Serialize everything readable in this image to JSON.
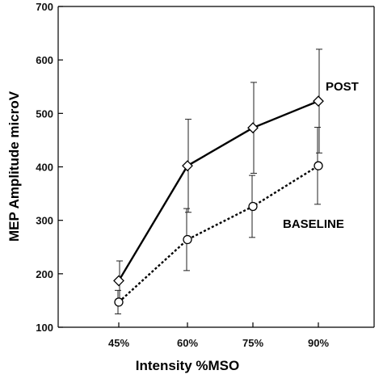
{
  "chart_data": {
    "type": "line",
    "categories": [
      "45%",
      "60%",
      "75%",
      "90%"
    ],
    "xlabel": "Intensity %MSO",
    "ylabel": "MEP Amplitude  microV",
    "ylim": [
      100,
      700
    ],
    "yticks": [
      100,
      200,
      300,
      400,
      500,
      600,
      700
    ],
    "grid": false,
    "series": [
      {
        "name": "POST",
        "values": [
          187,
          402,
          473,
          523
        ],
        "error": [
          37,
          87,
          85,
          97
        ],
        "marker": "diamond",
        "line": "solid"
      },
      {
        "name": "BASELINE",
        "values": [
          147,
          264,
          326,
          402
        ],
        "error": [
          22,
          58,
          58,
          72
        ],
        "marker": "circle",
        "line": "dotted"
      }
    ]
  }
}
